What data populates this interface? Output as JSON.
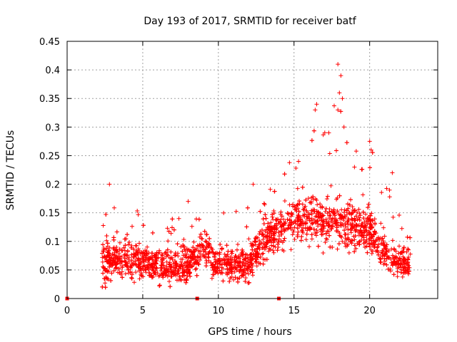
{
  "chart_data": {
    "type": "scatter",
    "title": "Day 193 of 2017, SRMTID for receiver batf",
    "xlabel": "GPS time / hours",
    "ylabel": "SRMTID / TECUs",
    "xlim": [
      0,
      24.5
    ],
    "ylim": [
      0,
      0.45
    ],
    "xticks": [
      0,
      5,
      10,
      15,
      20
    ],
    "xtick_labels": [
      "0",
      "5",
      "10",
      "15",
      "20"
    ],
    "yticks": [
      0,
      0.05,
      0.1,
      0.15,
      0.2,
      0.25,
      0.3,
      0.35,
      0.4,
      0.45
    ],
    "ytick_labels": [
      "0",
      "0.05",
      "0.1",
      "0.15",
      "0.2",
      "0.25",
      "0.3",
      "0.35",
      "0.4",
      "0.45"
    ],
    "grid": true,
    "marker": "+",
    "color": "#ff0000",
    "x_coverage_hours": [
      2.3,
      22.7
    ],
    "zero_markers_x": [
      0.0,
      8.6,
      14.0
    ],
    "envelope": [
      {
        "x": 2.5,
        "median": 0.06,
        "spread": 0.07,
        "peak": 0.15
      },
      {
        "x": 3.0,
        "median": 0.07,
        "spread": 0.06,
        "peak": 0.2
      },
      {
        "x": 4.0,
        "median": 0.07,
        "spread": 0.06,
        "peak": 0.17
      },
      {
        "x": 5.0,
        "median": 0.065,
        "spread": 0.05,
        "peak": 0.15
      },
      {
        "x": 6.0,
        "median": 0.06,
        "spread": 0.05,
        "peak": 0.15
      },
      {
        "x": 7.0,
        "median": 0.055,
        "spread": 0.05,
        "peak": 0.14
      },
      {
        "x": 8.0,
        "median": 0.06,
        "spread": 0.06,
        "peak": 0.17
      },
      {
        "x": 9.0,
        "median": 0.09,
        "spread": 0.05,
        "peak": 0.15
      },
      {
        "x": 10.0,
        "median": 0.06,
        "spread": 0.045,
        "peak": 0.15
      },
      {
        "x": 11.0,
        "median": 0.06,
        "spread": 0.05,
        "peak": 0.18
      },
      {
        "x": 12.0,
        "median": 0.06,
        "spread": 0.06,
        "peak": 0.2
      },
      {
        "x": 13.0,
        "median": 0.1,
        "spread": 0.06,
        "peak": 0.19
      },
      {
        "x": 14.0,
        "median": 0.12,
        "spread": 0.06,
        "peak": 0.21
      },
      {
        "x": 15.0,
        "median": 0.14,
        "spread": 0.06,
        "peak": 0.26
      },
      {
        "x": 16.0,
        "median": 0.14,
        "spread": 0.07,
        "peak": 0.34
      },
      {
        "x": 17.0,
        "median": 0.13,
        "spread": 0.07,
        "peak": 0.29
      },
      {
        "x": 18.0,
        "median": 0.14,
        "spread": 0.08,
        "peak": 0.41
      },
      {
        "x": 19.0,
        "median": 0.12,
        "spread": 0.07,
        "peak": 0.26
      },
      {
        "x": 20.0,
        "median": 0.12,
        "spread": 0.07,
        "peak": 0.28
      },
      {
        "x": 21.0,
        "median": 0.08,
        "spread": 0.06,
        "peak": 0.22
      },
      {
        "x": 22.0,
        "median": 0.06,
        "spread": 0.05,
        "peak": 0.16
      },
      {
        "x": 22.7,
        "median": 0.06,
        "spread": 0.04,
        "peak": 0.13
      }
    ],
    "notable_points": [
      {
        "x": 2.8,
        "y": 0.2
      },
      {
        "x": 15.3,
        "y": 0.24
      },
      {
        "x": 16.4,
        "y": 0.33
      },
      {
        "x": 16.5,
        "y": 0.34
      },
      {
        "x": 17.3,
        "y": 0.29
      },
      {
        "x": 17.9,
        "y": 0.41
      },
      {
        "x": 18.1,
        "y": 0.39
      },
      {
        "x": 18.0,
        "y": 0.36
      },
      {
        "x": 18.2,
        "y": 0.35
      },
      {
        "x": 18.3,
        "y": 0.3
      },
      {
        "x": 17.9,
        "y": 0.33
      },
      {
        "x": 20.0,
        "y": 0.275
      },
      {
        "x": 20.1,
        "y": 0.26
      },
      {
        "x": 21.5,
        "y": 0.22
      },
      {
        "x": 12.3,
        "y": 0.2
      },
      {
        "x": 8.0,
        "y": 0.17
      }
    ],
    "point_count": 2600
  }
}
